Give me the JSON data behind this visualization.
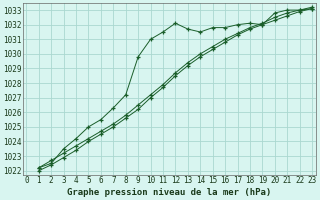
{
  "bg_color": "#d8f5f0",
  "grid_color": "#aad8d0",
  "line_color": "#1a5e2a",
  "title": "Graphe pression niveau de la mer (hPa)",
  "ylabel_ticks": [
    1022,
    1023,
    1024,
    1025,
    1026,
    1027,
    1028,
    1029,
    1030,
    1031,
    1032,
    1033
  ],
  "xlim": [
    -0.3,
    23.3
  ],
  "ylim": [
    1021.7,
    1033.5
  ],
  "series1_x": [
    1,
    2,
    3,
    4,
    5,
    6,
    7,
    8,
    9,
    10,
    11,
    12,
    13,
    14,
    15,
    16,
    17,
    18,
    19,
    20,
    21,
    22,
    23
  ],
  "series1_y": [
    1022.2,
    1022.5,
    1023.5,
    1024.2,
    1025.0,
    1025.5,
    1026.3,
    1027.2,
    1029.8,
    1031.0,
    1031.5,
    1032.1,
    1031.7,
    1031.5,
    1031.8,
    1031.8,
    1032.0,
    1032.1,
    1032.0,
    1032.8,
    1033.0,
    1033.0,
    1033.1
  ],
  "series2_x": [
    1,
    2,
    3,
    4,
    5,
    6,
    7,
    8,
    9,
    10,
    11,
    12,
    13,
    14,
    15,
    16,
    17,
    18,
    19,
    20,
    21,
    22,
    23
  ],
  "series2_y": [
    1022.2,
    1022.7,
    1023.2,
    1023.7,
    1024.2,
    1024.7,
    1025.2,
    1025.8,
    1026.5,
    1027.2,
    1027.9,
    1028.7,
    1029.4,
    1030.0,
    1030.5,
    1031.0,
    1031.4,
    1031.8,
    1032.1,
    1032.5,
    1032.8,
    1033.0,
    1033.2
  ],
  "series3_x": [
    1,
    2,
    3,
    4,
    5,
    6,
    7,
    8,
    9,
    10,
    11,
    12,
    13,
    14,
    15,
    16,
    17,
    18,
    19,
    20,
    21,
    22,
    23
  ],
  "series3_y": [
    1022.0,
    1022.4,
    1022.9,
    1023.4,
    1024.0,
    1024.5,
    1025.0,
    1025.6,
    1026.2,
    1027.0,
    1027.7,
    1028.5,
    1029.2,
    1029.8,
    1030.3,
    1030.8,
    1031.3,
    1031.7,
    1032.0,
    1032.3,
    1032.6,
    1032.9,
    1033.1
  ],
  "tick_fontsize": 5.5,
  "xlabel_fontsize": 6.5
}
